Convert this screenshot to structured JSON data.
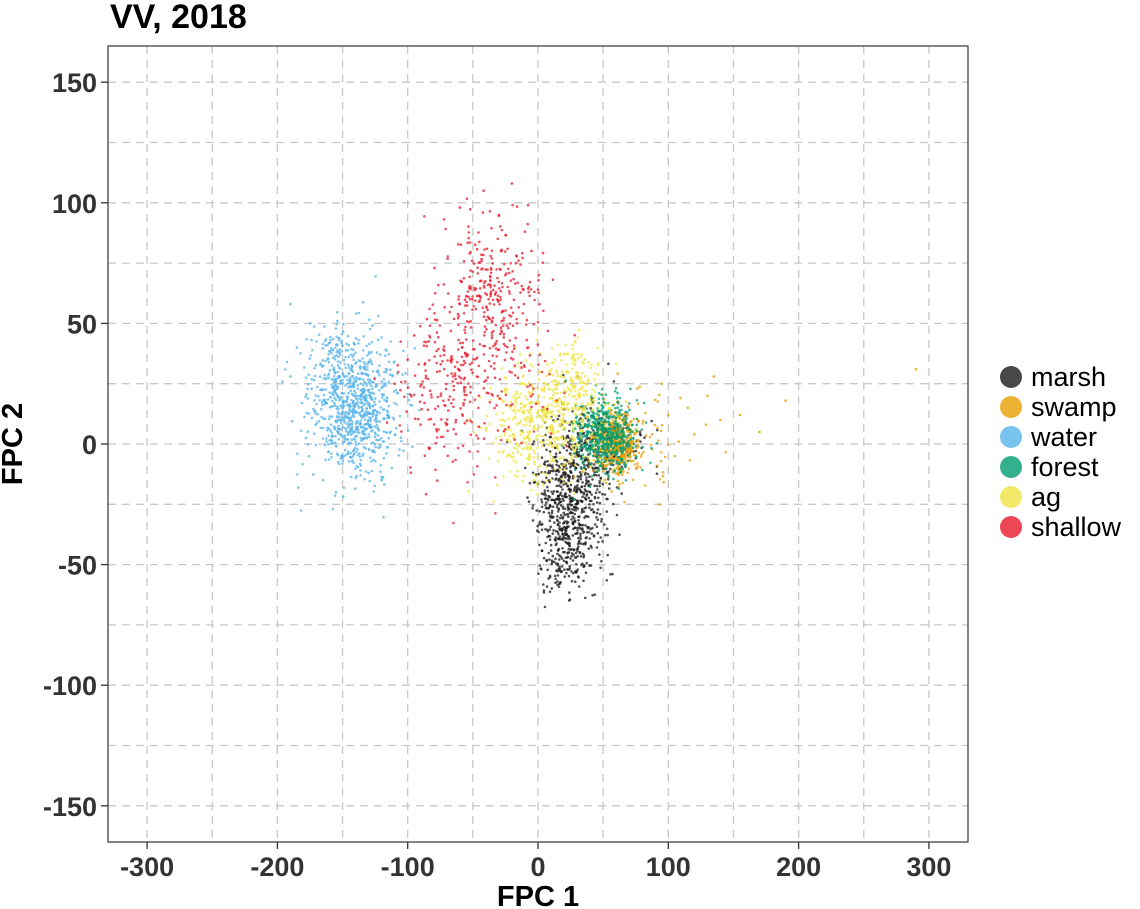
{
  "chart_data": {
    "type": "scatter",
    "title": "VV, 2018",
    "xlabel": "FPC 1",
    "ylabel": "FPC 2",
    "xlim": [
      -330,
      330
    ],
    "ylim": [
      -165,
      165
    ],
    "x_ticks": [
      -300,
      -200,
      -100,
      0,
      100,
      200,
      300
    ],
    "y_ticks": [
      150,
      100,
      50,
      0,
      -50,
      -100,
      -150
    ],
    "x_ticks_labels": [
      "-300",
      "-200",
      "-100",
      "0",
      "100",
      "200",
      "300"
    ],
    "y_ticks_labels": [
      "150",
      "100",
      "50",
      "0",
      "-50",
      "-100",
      "-150"
    ],
    "x_minor_grid": [
      -250,
      -150,
      -50,
      50,
      150,
      250
    ],
    "y_minor_grid": [
      125,
      75,
      25,
      -25,
      -75,
      -125
    ],
    "grid": true,
    "legend_position": "right",
    "series": [
      {
        "name": "marsh",
        "color": "#1a1a1a",
        "clusters": [
          {
            "cx": 25,
            "cy": -22,
            "sx": 14,
            "sy": 16,
            "n": 650,
            "seed": 11
          },
          {
            "cx": 20,
            "cy": -45,
            "sx": 9,
            "sy": 8,
            "n": 120,
            "seed": 12
          },
          {
            "cx": 45,
            "cy": 0,
            "sx": 18,
            "sy": 7,
            "n": 220,
            "seed": 13
          }
        ]
      },
      {
        "name": "swamp",
        "color": "#e69f00",
        "clusters": [
          {
            "cx": 60,
            "cy": 0,
            "sx": 9,
            "sy": 7,
            "n": 480,
            "seed": 21
          },
          {
            "cx": 75,
            "cy": 5,
            "sx": 22,
            "sy": 9,
            "n": 60,
            "seed": 22
          }
        ],
        "outliers": [
          [
            100,
            12
          ],
          [
            120,
            4
          ],
          [
            130,
            20
          ],
          [
            135,
            28
          ],
          [
            105,
            -5
          ],
          [
            140,
            10
          ],
          [
            155,
            12
          ],
          [
            170,
            5
          ],
          [
            190,
            18
          ],
          [
            290,
            31
          ],
          [
            95,
            25
          ],
          [
            115,
            15
          ]
        ]
      },
      {
        "name": "water",
        "color": "#56b4e9",
        "clusters": [
          {
            "cx": -140,
            "cy": 15,
            "sx": 17,
            "sy": 14,
            "n": 850,
            "seed": 31
          },
          {
            "cx": -155,
            "cy": 38,
            "sx": 12,
            "sy": 7,
            "n": 70,
            "seed": 32
          }
        ],
        "outliers": [
          [
            -190,
            58
          ],
          [
            -185,
            40
          ],
          [
            -175,
            50
          ],
          [
            -190,
            28
          ],
          [
            -165,
            -15
          ],
          [
            -155,
            -20
          ],
          [
            -130,
            -12
          ],
          [
            -120,
            -15
          ]
        ]
      },
      {
        "name": "forest",
        "color": "#009e73",
        "clusters": [
          {
            "cx": 52,
            "cy": 4,
            "sx": 12,
            "sy": 8,
            "n": 520,
            "seed": 41
          }
        ]
      },
      {
        "name": "ag",
        "color": "#f0e442",
        "clusters": [
          {
            "cx": 5,
            "cy": 8,
            "sx": 22,
            "sy": 12,
            "n": 560,
            "seed": 51
          },
          {
            "cx": 30,
            "cy": 28,
            "sx": 9,
            "sy": 8,
            "n": 110,
            "seed": 52
          }
        ]
      },
      {
        "name": "shallow",
        "color": "#e8192c",
        "clusters": [
          {
            "cx": -40,
            "cy": 60,
            "sx": 18,
            "sy": 17,
            "n": 280,
            "seed": 61
          },
          {
            "cx": -70,
            "cy": 22,
            "sx": 18,
            "sy": 18,
            "n": 210,
            "seed": 62
          },
          {
            "cx": -15,
            "cy": 35,
            "sx": 18,
            "sy": 22,
            "n": 90,
            "seed": 63
          }
        ],
        "outliers": [
          [
            -20,
            108
          ],
          [
            -60,
            98
          ],
          [
            -30,
            95
          ],
          [
            -5,
            80
          ],
          [
            -110,
            25
          ],
          [
            -100,
            35
          ],
          [
            -95,
            45
          ],
          [
            0,
            64
          ]
        ]
      }
    ]
  }
}
